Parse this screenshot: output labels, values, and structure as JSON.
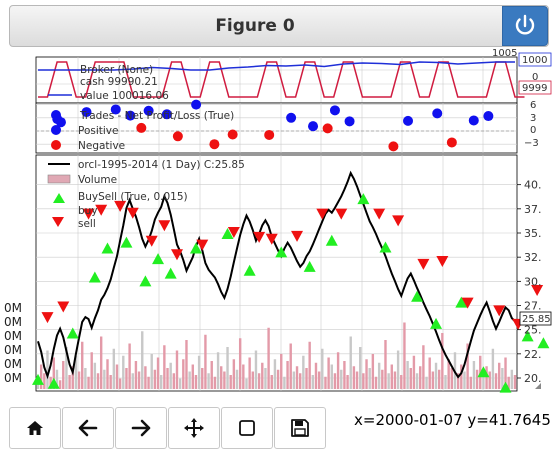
{
  "window": {
    "title": "Figure 0",
    "power_icon": "power-icon"
  },
  "colors": {
    "value_line": "#1f2fd8",
    "cash_line": "#d01c40",
    "positive": "#1010ee",
    "negative": "#ee1111",
    "buy": "#22ee22",
    "sell": "#ee1111",
    "price": "#000000"
  },
  "broker": {
    "label_broker": "Broker (None)",
    "label_cash": "cash 99990.21",
    "label_value": "value 100016.06",
    "axis_ticks": [
      "1005",
      "1000",
      "0",
      "9999"
    ],
    "right_tag": "9999"
  },
  "trades": {
    "label_title": "Trades - Net Profit/Loss (True)",
    "label_positive": "Positive",
    "label_negative": "Negative",
    "axis_ticks": [
      "6",
      "3",
      "0",
      "−3"
    ]
  },
  "price": {
    "label_series": "orcl-1995-2014 (1 Day) C:25.85",
    "label_volume": "Volume",
    "label_buysell": "BuySell (True, 0.015)",
    "label_buy": "buy",
    "label_sell": "sell",
    "axis_ticks": [
      "40.",
      "37.",
      "35.",
      "32.",
      "30.",
      "27.",
      "25.",
      "22.",
      "20."
    ],
    "last_value_tag": "25.85",
    "volume_ticks": [
      "0M",
      "0M",
      "0M",
      "0M",
      "0M",
      "0M"
    ]
  },
  "chart_data": {
    "type": "line",
    "title": "",
    "xlabel": "",
    "ylabel": "",
    "ylim": [
      19.5,
      42
    ],
    "close": [
      23.8,
      22.7,
      21.1,
      20.2,
      21.3,
      23.0,
      24.4,
      25.1,
      24.2,
      22.8,
      21.4,
      20.6,
      22.5,
      24.2,
      25.8,
      26.3,
      26.1,
      25.2,
      26.2,
      27.0,
      28.1,
      28.6,
      29.3,
      30.2,
      31.4,
      32.6,
      34.2,
      35.8,
      37.6,
      38.4,
      37.5,
      36.7,
      35.6,
      34.4,
      33.6,
      34.3,
      35.2,
      36.4,
      37.1,
      37.7,
      38.8,
      38.1,
      36.9,
      35.4,
      33.8,
      33.1,
      32.2,
      31.1,
      31.8,
      32.5,
      33.6,
      34.4,
      33.2,
      31.9,
      31.2,
      30.8,
      30.4,
      29.7,
      28.9,
      28.3,
      29.2,
      30.5,
      32.0,
      33.4,
      34.8,
      35.9,
      36.8,
      36.2,
      35.3,
      34.2,
      34.9,
      35.8,
      36.3,
      35.7,
      34.6,
      33.9,
      33.2,
      32.6,
      33.4,
      34.0,
      33.5,
      32.8,
      32.1,
      31.5,
      31.9,
      32.6,
      33.1,
      33.8,
      34.6,
      35.4,
      36.2,
      37.0,
      37.4,
      37.1,
      37.6,
      38.2,
      38.8,
      39.5,
      40.3,
      41.2,
      40.6,
      39.8,
      38.9,
      38.0,
      37.1,
      36.2,
      35.6,
      34.9,
      34.1,
      33.4,
      32.6,
      31.7,
      30.8,
      30.0,
      29.2,
      28.5,
      29.4,
      30.3,
      30.8,
      30.1,
      29.3,
      28.6,
      27.8,
      27.1,
      26.4,
      25.6,
      24.8,
      23.9,
      23.1,
      22.4,
      21.8,
      21.2,
      20.6,
      20.1,
      20.5,
      21.4,
      22.6,
      23.8,
      24.9,
      25.7,
      26.5,
      27.2,
      27.8,
      26.9,
      25.9,
      25.1,
      25.8,
      26.6,
      27.3,
      27.0,
      26.2,
      25.85
    ],
    "buy_signals": [
      {
        "x": 0,
        "y": 19.8
      },
      {
        "x": 5,
        "y": 19.4
      },
      {
        "x": 11,
        "y": 24.6
      },
      {
        "x": 18,
        "y": 30.4
      },
      {
        "x": 22,
        "y": 33.4
      },
      {
        "x": 28,
        "y": 34.0
      },
      {
        "x": 34,
        "y": 30.0
      },
      {
        "x": 38,
        "y": 32.3
      },
      {
        "x": 42,
        "y": 30.8
      },
      {
        "x": 50,
        "y": 33.4
      },
      {
        "x": 60,
        "y": 34.9
      },
      {
        "x": 67,
        "y": 31.1
      },
      {
        "x": 77,
        "y": 33.0
      },
      {
        "x": 86,
        "y": 31.5
      },
      {
        "x": 93,
        "y": 34.2
      },
      {
        "x": 103,
        "y": 38.5
      },
      {
        "x": 110,
        "y": 33.5
      },
      {
        "x": 120,
        "y": 28.4
      },
      {
        "x": 126,
        "y": 25.6
      },
      {
        "x": 134,
        "y": 27.8
      },
      {
        "x": 141,
        "y": 20.6
      },
      {
        "x": 148,
        "y": 19.0
      },
      {
        "x": 155,
        "y": 24.3
      },
      {
        "x": 160,
        "y": 23.6
      }
    ],
    "sell_signals": [
      {
        "x": 3,
        "y": 26.3
      },
      {
        "x": 8,
        "y": 27.4
      },
      {
        "x": 16,
        "y": 37.0
      },
      {
        "x": 20,
        "y": 37.4
      },
      {
        "x": 26,
        "y": 37.8
      },
      {
        "x": 30,
        "y": 37.1
      },
      {
        "x": 36,
        "y": 34.2
      },
      {
        "x": 40,
        "y": 35.8
      },
      {
        "x": 44,
        "y": 32.8
      },
      {
        "x": 52,
        "y": 33.8
      },
      {
        "x": 62,
        "y": 35.1
      },
      {
        "x": 70,
        "y": 34.6
      },
      {
        "x": 74,
        "y": 34.4
      },
      {
        "x": 82,
        "y": 34.7
      },
      {
        "x": 90,
        "y": 37.0
      },
      {
        "x": 96,
        "y": 37.0
      },
      {
        "x": 108,
        "y": 37.0
      },
      {
        "x": 114,
        "y": 36.3
      },
      {
        "x": 122,
        "y": 31.8
      },
      {
        "x": 128,
        "y": 32.1
      },
      {
        "x": 136,
        "y": 27.8
      },
      {
        "x": 146,
        "y": 27.0
      },
      {
        "x": 152,
        "y": 25.6
      },
      {
        "x": 158,
        "y": 29.1
      }
    ],
    "volume": [
      6,
      14,
      9,
      22,
      7,
      18,
      11,
      5,
      16,
      24,
      8,
      13,
      19,
      10,
      27,
      12,
      7,
      21,
      15,
      9,
      30,
      11,
      17,
      8,
      23,
      14,
      6,
      19,
      12,
      26,
      9,
      16,
      10,
      33,
      13,
      7,
      20,
      11,
      18,
      8,
      25,
      12,
      15,
      9,
      22,
      6,
      17,
      28,
      10,
      14,
      8,
      19,
      12,
      31,
      9,
      16,
      7,
      21,
      13,
      10,
      24,
      8,
      17,
      11,
      29,
      14,
      6,
      18,
      10,
      22,
      9,
      15,
      12,
      35,
      8,
      17,
      11,
      20,
      7,
      16,
      26,
      10,
      13,
      9,
      19,
      12,
      27,
      8,
      15,
      10,
      23,
      7,
      18,
      14,
      9,
      21,
      11,
      16,
      8,
      30,
      13,
      10,
      24,
      9,
      17,
      12,
      20,
      7,
      15,
      11,
      28,
      9,
      14,
      10,
      22,
      8,
      38,
      16,
      12,
      19,
      9,
      13,
      25,
      7,
      18,
      10,
      15,
      11,
      32,
      8,
      17,
      12,
      21,
      9,
      14,
      10,
      26,
      7,
      16,
      11,
      19,
      8,
      13,
      10,
      23,
      9,
      15,
      12,
      18,
      7,
      11,
      8
    ],
    "trades_positive": [
      {
        "x": 2,
        "y": 2.7
      },
      {
        "x": 3,
        "y": 2.0
      },
      {
        "x": 10,
        "y": 4.3
      },
      {
        "x": 18,
        "y": 4.9
      },
      {
        "x": 22,
        "y": 3.5
      },
      {
        "x": 27,
        "y": 4.6
      },
      {
        "x": 32,
        "y": 3.8
      },
      {
        "x": 40,
        "y": 6.0
      },
      {
        "x": 66,
        "y": 3.0
      },
      {
        "x": 72,
        "y": 1.1
      },
      {
        "x": 78,
        "y": 4.7
      },
      {
        "x": 82,
        "y": 2.2
      },
      {
        "x": 98,
        "y": 2.3
      },
      {
        "x": 106,
        "y": 4.0
      },
      {
        "x": 116,
        "y": 2.4
      },
      {
        "x": 120,
        "y": 3.4
      }
    ],
    "trades_negative": [
      {
        "x": 25,
        "y": 0.7
      },
      {
        "x": 35,
        "y": -1.2
      },
      {
        "x": 45,
        "y": -3.0
      },
      {
        "x": 50,
        "y": -0.8
      },
      {
        "x": 60,
        "y": -0.9
      },
      {
        "x": 76,
        "y": 0.6
      },
      {
        "x": 94,
        "y": -3.5
      },
      {
        "x": 110,
        "y": -2.6
      }
    ],
    "broker_value": [
      100000,
      100000,
      100000,
      100000,
      100000,
      100002,
      100005,
      100003,
      100000,
      100000,
      100004,
      100006,
      100009,
      100008,
      100010,
      100007,
      100012,
      100014,
      100013,
      100011,
      100016,
      100015,
      100012,
      100014,
      100016,
      100016
    ],
    "broker_cash": [
      99999,
      100000,
      99991,
      100000,
      100000,
      99992,
      99992,
      100000,
      99991,
      100000,
      99991,
      99991,
      100000,
      99992,
      100000,
      99991,
      100000,
      99992,
      99992,
      100000,
      99991,
      100000,
      99990,
      99990,
      100000,
      99990
    ]
  }
}
